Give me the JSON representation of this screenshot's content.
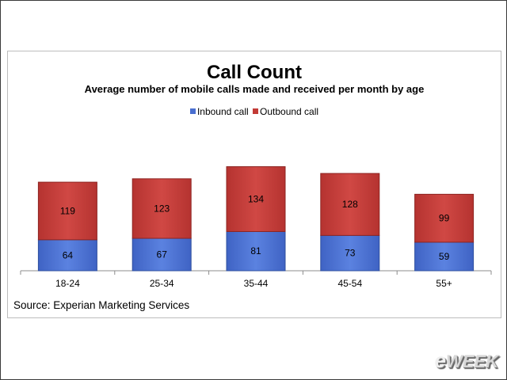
{
  "chart_data": {
    "type": "bar",
    "stacked": true,
    "title": "Call Count",
    "subtitle": "Average number of mobile calls made and received per month by age",
    "categories": [
      "18-24",
      "25-34",
      "35-44",
      "45-54",
      "55+"
    ],
    "series": [
      {
        "name": "Inbound call",
        "values": [
          64,
          67,
          81,
          73,
          59
        ],
        "color": "#4a6fd0"
      },
      {
        "name": "Outbound call",
        "values": [
          119,
          123,
          134,
          128,
          99
        ],
        "color": "#c23a36"
      }
    ],
    "legend_position": "top-center",
    "grid": false,
    "ylim": [
      0,
      230
    ],
    "source": "Source: Experian Marketing Services"
  },
  "logo": {
    "prefix": "e",
    "rest": "WEEK"
  }
}
